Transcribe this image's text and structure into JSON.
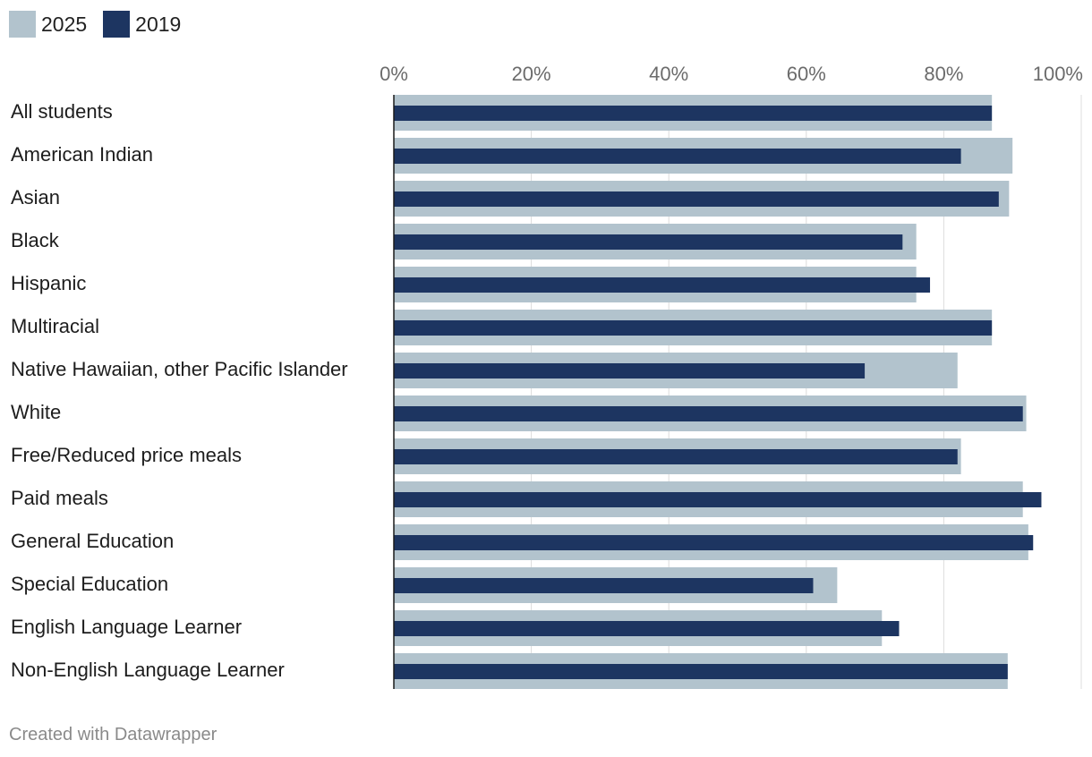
{
  "chart_data": {
    "type": "bar",
    "orientation": "horizontal",
    "title": "",
    "xlabel": "",
    "ylabel": "",
    "xlim": [
      0,
      100
    ],
    "x_ticks": [
      "0%",
      "20%",
      "40%",
      "60%",
      "80%",
      "100%"
    ],
    "grid": true,
    "legend_position": "top-left",
    "categories": [
      "All students",
      "American Indian",
      "Asian",
      "Black",
      "Hispanic",
      "Multiracial",
      "Native Hawaiian, other Pacific Islander",
      "White",
      "Free/Reduced price meals",
      "Paid meals",
      "General Education",
      "Special Education",
      "English Language Learner",
      "Non-English Language Learner"
    ],
    "series": [
      {
        "name": "2025",
        "color": "#b2c3cd",
        "values": [
          87,
          90,
          89.5,
          76,
          76,
          87,
          82,
          92,
          82.5,
          91.5,
          92.3,
          64.5,
          71,
          89.3
        ]
      },
      {
        "name": "2019",
        "color": "#1d3561",
        "values": [
          87,
          82.5,
          88,
          74,
          78,
          87,
          68.5,
          91.5,
          82,
          94.2,
          93,
          61,
          73.5,
          89.3
        ]
      }
    ]
  },
  "footer": {
    "credit": "Created with Datawrapper"
  }
}
